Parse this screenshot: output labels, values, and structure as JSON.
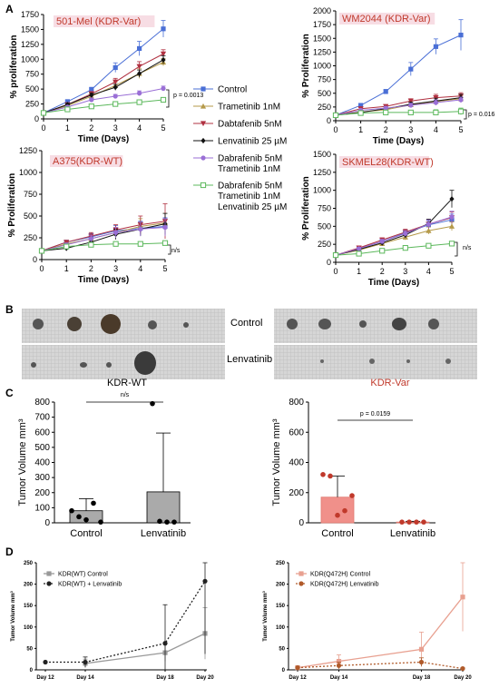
{
  "panel_labels": [
    "A",
    "B",
    "C",
    "D"
  ],
  "legend": {
    "entries": [
      {
        "label": "Control",
        "color": "#4a6fd6",
        "marker": "square"
      },
      {
        "label": "Trametinib 1nM",
        "color": "#b59a4a",
        "marker": "triangle-up"
      },
      {
        "label": "Dabtafenib 5nM",
        "color": "#b03040",
        "marker": "triangle-down"
      },
      {
        "label": "Lenvatinib 25 µM",
        "color": "#111111",
        "marker": "diamond"
      },
      {
        "label": "Dabrafenib 5nM",
        "label2": "Trametinib 1nM",
        "color": "#9a6fd6",
        "marker": "circle"
      },
      {
        "label": "Dabrafenib 5nM",
        "label2": "Trametinib 1nM",
        "label3": "Lenvatinib 25 µM",
        "color": "#5cb85c",
        "marker": "open-square"
      }
    ]
  },
  "photo": {
    "row_labels": [
      "Control",
      "Lenvatinib"
    ],
    "group_labels": [
      "KDR-WT",
      "KDR-Var"
    ]
  },
  "chart_data": [
    {
      "id": "A1",
      "type": "line",
      "title": "501-Mel (KDR-Var)",
      "xlabel": "Time (Days)",
      "ylabel": "% proliferation",
      "x": [
        0,
        1,
        2,
        3,
        4,
        5
      ],
      "xticks": [
        "0",
        "1",
        "2",
        "3",
        "4",
        "5"
      ],
      "ylim": [
        0,
        1750
      ],
      "yticks": [
        0,
        250,
        500,
        750,
        1000,
        1250,
        1500,
        1750
      ],
      "yticklabels": [
        "0",
        "250",
        "500",
        "750",
        "1000",
        "1250",
        "1500",
        "1750"
      ],
      "annotation": "p = 0.0013",
      "series": [
        {
          "name": "Control",
          "values": [
            100,
            290,
            490,
            860,
            1180,
            1510
          ],
          "err": [
            0,
            20,
            40,
            80,
            120,
            140
          ]
        },
        {
          "name": "Trametinib 1nM",
          "values": [
            100,
            220,
            380,
            560,
            760,
            950
          ],
          "err": [
            0,
            20,
            40,
            60,
            80,
            60
          ]
        },
        {
          "name": "Dabtafenib 5nM",
          "values": [
            100,
            240,
            420,
            620,
            880,
            1090
          ],
          "err": [
            0,
            20,
            40,
            60,
            80,
            70
          ]
        },
        {
          "name": "Lenvatinib 25 µM",
          "values": [
            100,
            240,
            400,
            530,
            760,
            990
          ],
          "err": [
            0,
            20,
            30,
            50,
            60,
            70
          ]
        },
        {
          "name": "Dabrafenib 5nM Trametinib 1nM",
          "values": [
            100,
            200,
            320,
            380,
            430,
            510
          ],
          "err": [
            0,
            20,
            30,
            30,
            40,
            40
          ]
        },
        {
          "name": "Dabrafenib 5nM Trametinib 1nM Lenvatinib 25 µM",
          "values": [
            100,
            160,
            210,
            250,
            280,
            320
          ],
          "err": [
            0,
            15,
            20,
            25,
            25,
            30
          ]
        }
      ]
    },
    {
      "id": "A2",
      "type": "line",
      "title": "WM2044 (KDR-Var)",
      "xlabel": "Time (Days)",
      "ylabel": "% Proliferation",
      "x": [
        0,
        1,
        2,
        3,
        4,
        5
      ],
      "xticks": [
        "0",
        "1",
        "2",
        "3",
        "4",
        "5"
      ],
      "ylim": [
        0,
        2000
      ],
      "yticks": [
        0,
        250,
        500,
        750,
        1000,
        1250,
        1500,
        1750,
        2000
      ],
      "yticklabels": [
        "0",
        "250",
        "500",
        "750",
        "1000",
        "1250",
        "1500",
        "1750",
        "2000"
      ],
      "annotation": "p = 0.016",
      "series": [
        {
          "name": "Control",
          "values": [
            100,
            280,
            530,
            940,
            1350,
            1560
          ],
          "err": [
            0,
            30,
            40,
            120,
            140,
            280
          ]
        },
        {
          "name": "Trametinib 1nM",
          "values": [
            100,
            160,
            200,
            290,
            350,
            400
          ],
          "err": [
            0,
            20,
            30,
            40,
            60,
            60
          ]
        },
        {
          "name": "Dabtafenib 5nM",
          "values": [
            100,
            220,
            260,
            360,
            420,
            450
          ],
          "err": [
            0,
            20,
            30,
            40,
            60,
            60
          ]
        },
        {
          "name": "Lenvatinib 25 µM",
          "values": [
            100,
            150,
            220,
            300,
            360,
            420
          ],
          "err": [
            0,
            20,
            30,
            40,
            50,
            60
          ]
        },
        {
          "name": "Dabrafenib 5nM Trametinib 1nM",
          "values": [
            100,
            190,
            230,
            280,
            330,
            380
          ],
          "err": [
            0,
            20,
            30,
            40,
            50,
            50
          ]
        },
        {
          "name": "Dabrafenib 5nM Trametinib 1nM Lenvatinib 25 µM",
          "values": [
            100,
            140,
            150,
            150,
            150,
            170
          ],
          "err": [
            0,
            20,
            30,
            40,
            50,
            60
          ]
        }
      ]
    },
    {
      "id": "A3",
      "type": "line",
      "title": "A375(KDR-WT)",
      "xlabel": "Time (Days)",
      "ylabel": "% Proliferation",
      "x": [
        0,
        1,
        2,
        3,
        4,
        5
      ],
      "xticks": [
        "0",
        "1",
        "2",
        "3",
        "4",
        "5"
      ],
      "ylim": [
        0,
        1250
      ],
      "yticks": [
        0,
        250,
        500,
        750,
        1000,
        1250
      ],
      "yticklabels": [
        "0",
        "250",
        "500",
        "750",
        "1000",
        "1250"
      ],
      "annotation": "n/s",
      "series": [
        {
          "name": "Control",
          "values": [
            100,
            200,
            260,
            330,
            360,
            380
          ],
          "err": [
            0,
            20,
            40,
            60,
            80,
            100
          ]
        },
        {
          "name": "Trametinib 1nM",
          "values": [
            100,
            180,
            240,
            310,
            380,
            420
          ],
          "err": [
            0,
            20,
            40,
            60,
            90,
            110
          ]
        },
        {
          "name": "Dabtafenib 5nM",
          "values": [
            100,
            200,
            270,
            340,
            400,
            440
          ],
          "err": [
            0,
            20,
            40,
            60,
            100,
            200
          ]
        },
        {
          "name": "Lenvatinib 25 µM",
          "values": [
            100,
            130,
            200,
            290,
            350,
            410
          ],
          "err": [
            0,
            20,
            40,
            60,
            80,
            120
          ]
        },
        {
          "name": "Dabrafenib 5nM Trametinib 1nM",
          "values": [
            100,
            170,
            240,
            310,
            350,
            370
          ],
          "err": [
            0,
            20,
            40,
            60,
            80,
            100
          ]
        },
        {
          "name": "Dabrafenib 5nM Trametinib 1nM Lenvatinib 25 µM",
          "values": [
            100,
            150,
            170,
            180,
            180,
            190
          ],
          "err": [
            0,
            20,
            20,
            20,
            20,
            20
          ]
        }
      ]
    },
    {
      "id": "A4",
      "type": "line",
      "title": "SKMEL28(KDR-WT)",
      "xlabel": "Time (Days)",
      "ylabel": "% Proliferation",
      "x": [
        0,
        1,
        2,
        3,
        4,
        5
      ],
      "xticks": [
        "0",
        "1",
        "2",
        "3",
        "4",
        "5"
      ],
      "ylim": [
        0,
        1500
      ],
      "yticks": [
        0,
        250,
        500,
        750,
        1000,
        1250,
        1500
      ],
      "yticklabels": [
        "0",
        "250",
        "500",
        "750",
        "1000",
        "1250",
        "1500"
      ],
      "annotation": "n/s",
      "series": [
        {
          "name": "Control",
          "values": [
            100,
            190,
            290,
            410,
            520,
            590
          ],
          "err": [
            0,
            20,
            30,
            40,
            60,
            80
          ]
        },
        {
          "name": "Trametinib 1nM",
          "values": [
            100,
            170,
            260,
            350,
            440,
            500
          ],
          "err": [
            0,
            20,
            30,
            40,
            50,
            60
          ]
        },
        {
          "name": "Dabtafenib 5nM",
          "values": [
            100,
            200,
            310,
            420,
            530,
            620
          ],
          "err": [
            0,
            20,
            30,
            40,
            60,
            80
          ]
        },
        {
          "name": "Lenvatinib 25 µM",
          "values": [
            100,
            180,
            270,
            380,
            540,
            880
          ],
          "err": [
            0,
            20,
            30,
            40,
            60,
            120
          ]
        },
        {
          "name": "Dabrafenib 5nM Trametinib 1nM",
          "values": [
            100,
            190,
            290,
            400,
            530,
            630
          ],
          "err": [
            0,
            20,
            30,
            40,
            60,
            80
          ]
        },
        {
          "name": "Dabrafenib 5nM Trametinib 1nM Lenvatinib 25 µM",
          "values": [
            100,
            120,
            160,
            200,
            230,
            260
          ],
          "err": [
            0,
            15,
            20,
            20,
            20,
            20
          ]
        }
      ]
    },
    {
      "id": "C1",
      "type": "bar",
      "title": "KDR-WT",
      "ylabel": "Tumor Volume mm³",
      "categories": [
        "Control",
        "Lenvatinib"
      ],
      "values": [
        80,
        205
      ],
      "err": [
        80,
        390
      ],
      "points": [
        [
          80,
          40,
          20,
          130,
          5
        ],
        [
          790,
          10,
          5,
          5
        ]
      ],
      "ylim": [
        0,
        800
      ],
      "yticks": [
        0,
        100,
        200,
        300,
        400,
        500,
        600,
        700,
        800
      ],
      "yticklabels": [
        "0",
        "100",
        "200",
        "300",
        "400",
        "500",
        "600",
        "700",
        "800"
      ],
      "bar_color": "#aaaaaa",
      "annotation": "n/s"
    },
    {
      "id": "C2",
      "type": "bar",
      "title": "KDR-Var",
      "ylabel": "Tumor Volume mm³",
      "categories": [
        "Control",
        "Lenvatinib"
      ],
      "values": [
        170,
        5
      ],
      "err": [
        140,
        5
      ],
      "points": [
        [
          320,
          310,
          50,
          80,
          180
        ],
        [
          5,
          5,
          5,
          5
        ]
      ],
      "ylim": [
        0,
        800
      ],
      "yticks": [
        0,
        200,
        400,
        600,
        800
      ],
      "yticklabels": [
        "0",
        "200",
        "400",
        "600",
        "800"
      ],
      "bar_color": "#f0908a",
      "annotation": "p = 0.0159"
    },
    {
      "id": "D1",
      "type": "line",
      "ylabel": "Tumor Volume mm³",
      "x": [
        12,
        14,
        18,
        20
      ],
      "xticks": [
        "Day 12",
        "Day 14",
        "Day 18",
        "Day 20"
      ],
      "ylim": [
        0,
        250
      ],
      "yticks": [
        0,
        50,
        100,
        150,
        200,
        250
      ],
      "yticklabels": [
        "0",
        "50",
        "100",
        "150",
        "200",
        "250"
      ],
      "legend": [
        "KDR(WT) Control",
        "KDR(WT) + Lenvatinib"
      ],
      "series": [
        {
          "name": "KDR(WT) Control",
          "values": [
            null,
            15,
            40,
            85
          ],
          "err": [
            0,
            10,
            20,
            60
          ],
          "color": "#999999",
          "marker": "square",
          "dash": false
        },
        {
          "name": "KDR(WT) + Lenvatinib",
          "values": [
            18,
            18,
            62,
            207
          ],
          "err": [
            0,
            12,
            90,
            170
          ],
          "color": "#222222",
          "marker": "circle",
          "dash": true
        }
      ]
    },
    {
      "id": "D2",
      "type": "line",
      "ylabel": "Tumor Volume mm³",
      "x": [
        12,
        14,
        18,
        20
      ],
      "xticks": [
        "Day 12",
        "Day 14",
        "Day 18",
        "Day 20"
      ],
      "ylim": [
        0,
        250
      ],
      "yticks": [
        0,
        50,
        100,
        150,
        200,
        250
      ],
      "yticklabels": [
        "0",
        "50",
        "100",
        "150",
        "200",
        "250"
      ],
      "legend": [
        "KDR(Q472H) Control",
        "KDR(Q472H) Lenvatinib"
      ],
      "series": [
        {
          "name": "KDR(Q472H) Control",
          "values": [
            5,
            20,
            48,
            170
          ],
          "err": [
            5,
            15,
            40,
            80
          ],
          "color": "#e8a090",
          "marker": "square",
          "dash": false
        },
        {
          "name": "KDR(Q472H) Lenvatinib",
          "values": [
            5,
            10,
            18,
            3
          ],
          "err": [
            3,
            8,
            10,
            2
          ],
          "color": "#b05a2a",
          "marker": "circle",
          "dash": true
        }
      ]
    }
  ]
}
